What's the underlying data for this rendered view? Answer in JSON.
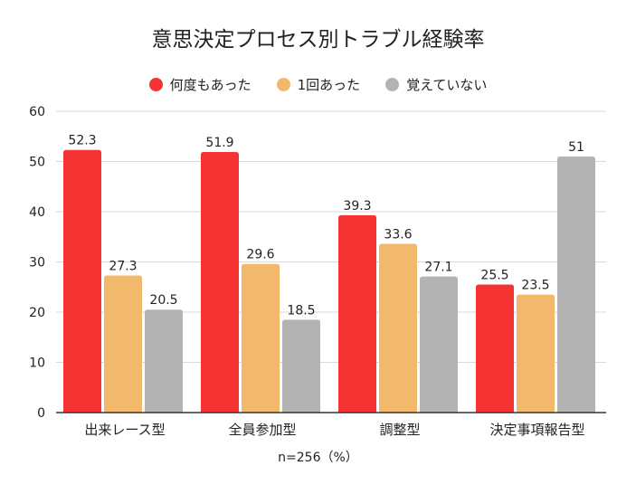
{
  "chart_data": {
    "type": "bar",
    "title": "意思決定プロセス別トラブル経験率",
    "categories": [
      "出来レース型",
      "全員参加型",
      "調整型",
      "決定事項報告型"
    ],
    "series": [
      {
        "name": "何度もあった",
        "color": "#f53333",
        "values": [
          52.3,
          51.9,
          39.3,
          25.5
        ],
        "labels": [
          "52.3",
          "51.9",
          "39.3",
          "25.5"
        ]
      },
      {
        "name": "1回あった",
        "color": "#f2b86b",
        "values": [
          27.3,
          29.6,
          33.6,
          23.5
        ],
        "labels": [
          "27.3",
          "29.6",
          "33.6",
          "23.5"
        ]
      },
      {
        "name": "覚えていない",
        "color": "#b3b3b3",
        "values": [
          20.5,
          18.5,
          27.1,
          51
        ],
        "labels": [
          "20.5",
          "18.5",
          "27.1",
          "51"
        ]
      }
    ],
    "ylim": [
      0,
      60
    ],
    "yticks": [
      0,
      10,
      20,
      30,
      40,
      50,
      60
    ],
    "grid": true,
    "legend_position": "top",
    "xlabel": "",
    "ylabel": "",
    "note": "n=256（%）"
  }
}
